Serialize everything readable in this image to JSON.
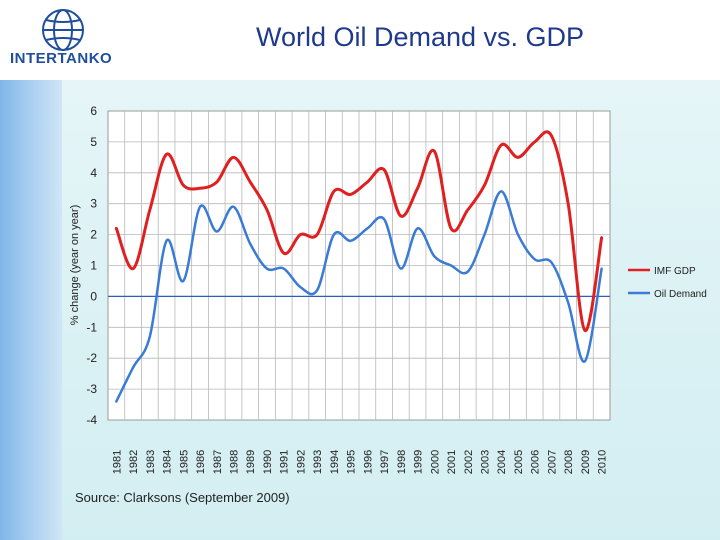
{
  "header": {
    "title": "World Oil Demand vs. GDP",
    "logo_text": "INTERTANKO"
  },
  "footer": {
    "source": "Source: Clarksons (September 2009)"
  },
  "colors": {
    "gdp": "#e02020",
    "oil": "#3a7bd5",
    "zero_line": "#2b5fbf"
  },
  "chart_data": {
    "type": "line",
    "title": "World Oil Demand vs. GDP",
    "xlabel": "",
    "ylabel": "% change (year on year)",
    "ylim": [
      -4,
      6
    ],
    "yticks": [
      "6",
      "5",
      "4",
      "3",
      "2",
      "1",
      "0",
      "-1",
      "-2",
      "-3",
      "-4"
    ],
    "x": [
      "1981",
      "1982",
      "1983",
      "1984",
      "1985",
      "1986",
      "1987",
      "1988",
      "1989",
      "1990",
      "1991",
      "1992",
      "1993",
      "1994",
      "1995",
      "1996",
      "1997",
      "1998",
      "1999",
      "2000",
      "2001",
      "2002",
      "2003",
      "2004",
      "2005",
      "2006",
      "2007",
      "2008",
      "2009",
      "2010"
    ],
    "grid": true,
    "legend_position": "right",
    "series": [
      {
        "name": "IMF GDP",
        "values": [
          2.2,
          0.9,
          2.8,
          4.6,
          3.6,
          3.5,
          3.7,
          4.5,
          3.7,
          2.8,
          1.4,
          2.0,
          2.0,
          3.4,
          3.3,
          3.7,
          4.1,
          2.6,
          3.5,
          4.7,
          2.2,
          2.8,
          3.6,
          4.9,
          4.5,
          5.0,
          5.2,
          3.0,
          -1.1,
          1.9
        ]
      },
      {
        "name": "Oil Demand",
        "values": [
          -3.4,
          -2.3,
          -1.3,
          1.8,
          0.5,
          2.9,
          2.1,
          2.9,
          1.7,
          0.9,
          0.9,
          0.3,
          0.2,
          2.0,
          1.8,
          2.2,
          2.5,
          0.9,
          2.2,
          1.3,
          1.0,
          0.8,
          2.0,
          3.4,
          2.0,
          1.2,
          1.1,
          -0.2,
          -2.1,
          0.9
        ]
      }
    ]
  }
}
